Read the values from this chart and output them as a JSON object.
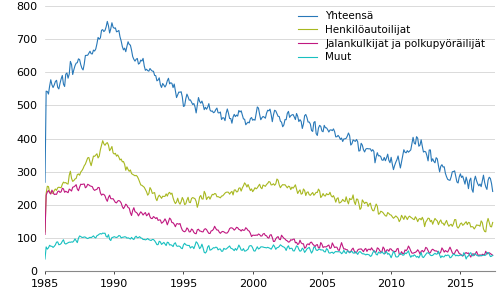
{
  "legend_labels": [
    "Yhteensä",
    "Henkilöautoilijat",
    "Jalankulkijat ja polkupyöräilijät",
    "Muut"
  ],
  "line_colors": [
    "#2878b8",
    "#a8b820",
    "#c01880",
    "#18c0c0"
  ],
  "ylim": [
    0,
    800
  ],
  "yticks": [
    0,
    100,
    200,
    300,
    400,
    500,
    600,
    700,
    800
  ],
  "xlim_start": 1985.0,
  "xlim_end": 2017.5,
  "xticks": [
    1985,
    1990,
    1995,
    2000,
    2005,
    2010,
    2015
  ],
  "linewidth": 0.8,
  "figsize": [
    5.0,
    3.08
  ],
  "dpi": 100,
  "bg_color": "#ffffff",
  "grid_color": "#cccccc",
  "font_size": 8,
  "legend_fontsize": 7.5
}
